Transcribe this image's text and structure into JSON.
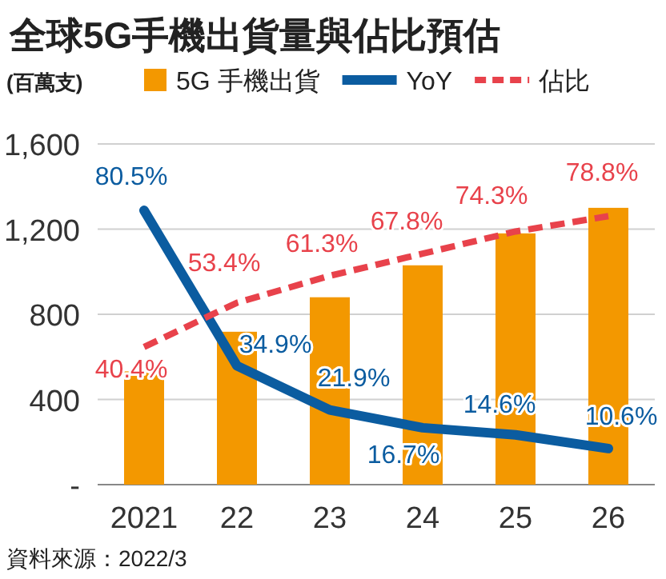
{
  "chart_data": {
    "type": "bar",
    "title": "全球5G手機出貨量與佔比預估",
    "ylabel": "(百萬支)",
    "categories": [
      "2021",
      "22",
      "23",
      "24",
      "25",
      "26"
    ],
    "series": [
      {
        "name": "5G 手機出貨",
        "color": "#f39800",
        "values": [
          532,
          718,
          880,
          1030,
          1180,
          1300
        ]
      },
      {
        "name": "YoY",
        "type": "line",
        "axis": "y2",
        "color": "#0b5ca0",
        "line_style": "solid",
        "values": [
          80.5,
          34.9,
          21.9,
          16.7,
          14.6,
          10.6
        ],
        "value_labels": [
          "80.5%",
          "34.9%",
          "21.9%",
          "16.7%",
          "14.6%",
          "10.6%"
        ]
      },
      {
        "name": "佔比",
        "type": "line",
        "axis": "y2",
        "color": "#e8424b",
        "line_style": "dashed",
        "values": [
          40.4,
          53.4,
          61.3,
          67.8,
          74.3,
          78.8
        ],
        "value_labels": [
          "40.4%",
          "53.4%",
          "61.3%",
          "67.8%",
          "74.3%",
          "78.8%"
        ]
      }
    ],
    "ylim": [
      0,
      1600
    ],
    "yticks": [
      {
        "value": 0,
        "label": "-"
      },
      400,
      800,
      {
        "value": 1200,
        "label": "1,200"
      },
      {
        "value": 1600,
        "label": "1,600"
      }
    ],
    "y2lim": [
      0,
      100
    ],
    "grid": "y",
    "legend": "top",
    "annotations": [
      "資料來源：2022/3"
    ]
  }
}
